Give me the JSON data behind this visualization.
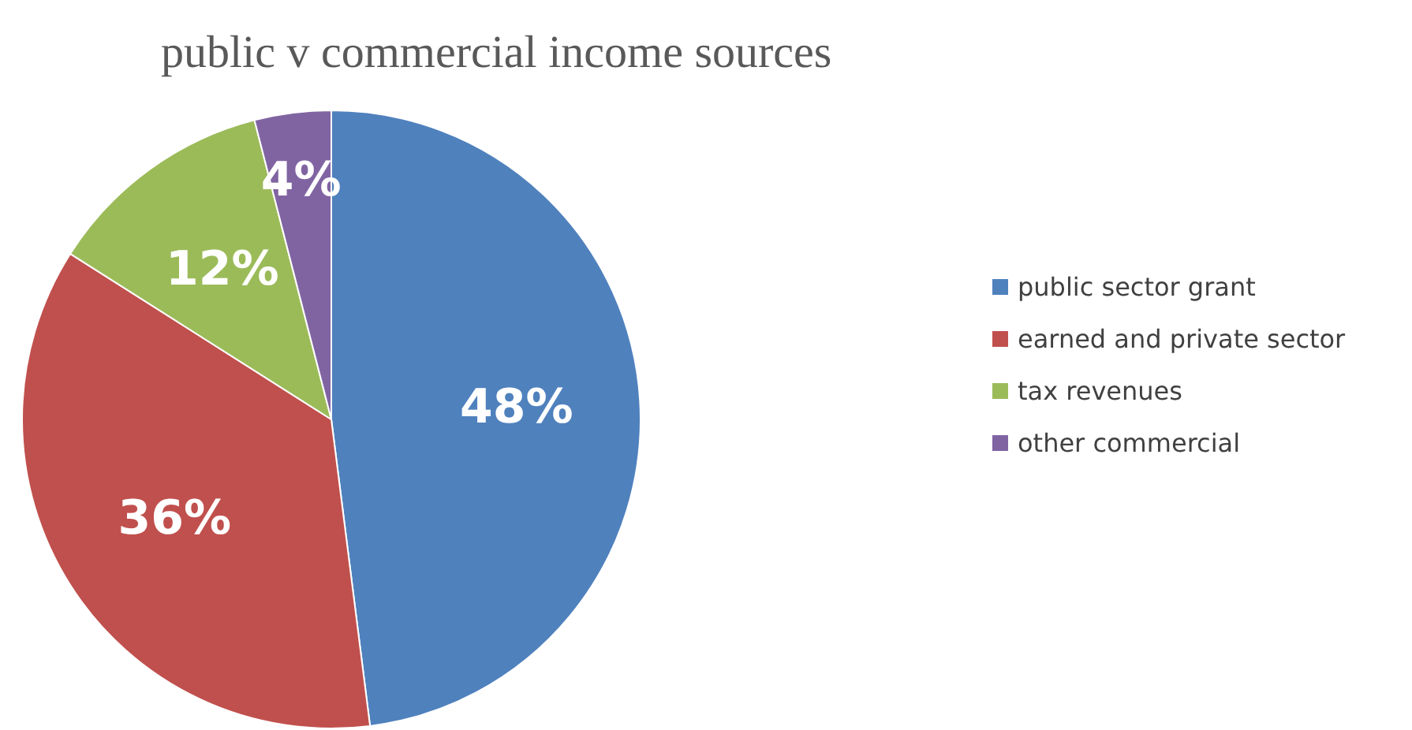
{
  "chart_data": {
    "type": "pie",
    "title": "public v commercial income sources",
    "categories": [
      "public sector grant",
      "earned and private sector",
      "tax revenues",
      "other commercial"
    ],
    "values": [
      48,
      36,
      12,
      4
    ],
    "value_labels": [
      "48%",
      "36%",
      "12%",
      "4%"
    ],
    "colors": [
      "#4f81bd",
      "#c0504d",
      "#9bbb59",
      "#8064a2"
    ],
    "legend": "right"
  }
}
